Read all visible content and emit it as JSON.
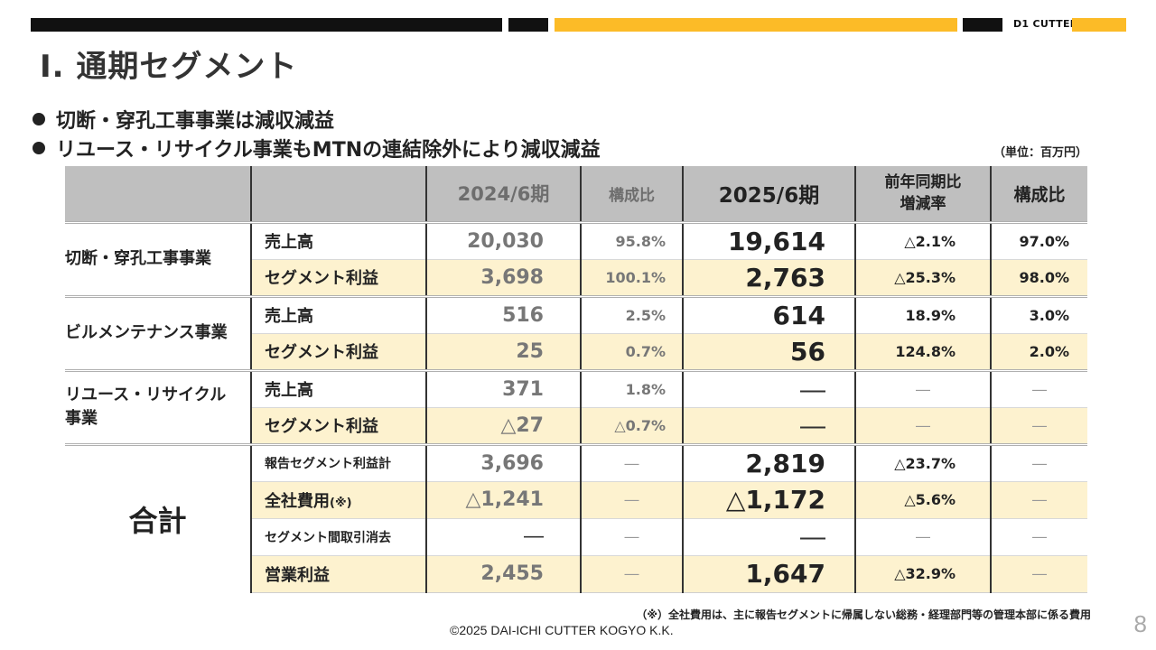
{
  "header": {
    "logo_text": "D1 CUTTER"
  },
  "colors": {
    "accent_yellow": "#fcbb27",
    "bar_black": "#111111",
    "header_gray": "#bfbfbf",
    "row_yellow": "#fdf2cf"
  },
  "title": "Ⅰ. 通期セグメント",
  "bullets": [
    "切断・穿孔工事事業は減収減益",
    "リユース・リサイクル事業もMTNの連結除外により減収減益"
  ],
  "unit": "（単位：百万円）",
  "table": {
    "headers": {
      "prev": "2024/6期",
      "prev_share": "構成比",
      "cur": "2025/6期",
      "yoy_line1": "前年同期比",
      "yoy_line2": "増減率",
      "cur_share": "構成比"
    },
    "groups": [
      {
        "name": "切断・穿孔工事事業",
        "rows": [
          {
            "label": "売上高",
            "v24": "20,030",
            "p24": "95.8%",
            "v25": "19,614",
            "yoy": "△2.1%",
            "p25": "97.0%"
          },
          {
            "label": "セグメント利益",
            "v24": "3,698",
            "p24": "100.1%",
            "v25": "2,763",
            "yoy": "△25.3%",
            "p25": "98.0%"
          }
        ]
      },
      {
        "name": "ビルメンテナンス事業",
        "rows": [
          {
            "label": "売上高",
            "v24": "516",
            "p24": "2.5%",
            "v25": "614",
            "yoy": "18.9%",
            "p25": "3.0%"
          },
          {
            "label": "セグメント利益",
            "v24": "25",
            "p24": "0.7%",
            "v25": "56",
            "yoy": "124.8%",
            "p25": "2.0%"
          }
        ]
      },
      {
        "name": "リユース・リサイクル事業",
        "rows": [
          {
            "label": "売上高",
            "v24": "371",
            "p24": "1.8%",
            "v25": "―",
            "yoy": "―",
            "p25": "―"
          },
          {
            "label": "セグメント利益",
            "v24": "△27",
            "p24": "△0.7%",
            "v25": "―",
            "yoy": "―",
            "p25": "―"
          }
        ]
      }
    ],
    "total": {
      "name": "合計",
      "rows": [
        {
          "label": "報告セグメント利益計",
          "v24": "3,696",
          "p24": "―",
          "v25": "2,819",
          "yoy": "△23.7%",
          "p25": "―"
        },
        {
          "label": "全社費用",
          "label_mark": "(※)",
          "v24": "△1,241",
          "p24": "―",
          "v25": "△1,172",
          "yoy": "△5.6%",
          "p25": "―"
        },
        {
          "label": "セグメント間取引消去",
          "v24": "―",
          "p24": "―",
          "v25": "―",
          "yoy": "―",
          "p25": "―"
        },
        {
          "label": "営業利益",
          "v24": "2,455",
          "p24": "―",
          "v25": "1,647",
          "yoy": "△32.9%",
          "p25": "―"
        }
      ]
    }
  },
  "footnote": "（※）全社費用は、主に報告セグメントに帰属しない総務・経理部門等の管理本部に係る費用",
  "copyright": "©2025 DAI-ICHI CUTTER KOGYO K.K.",
  "page_number": "8"
}
